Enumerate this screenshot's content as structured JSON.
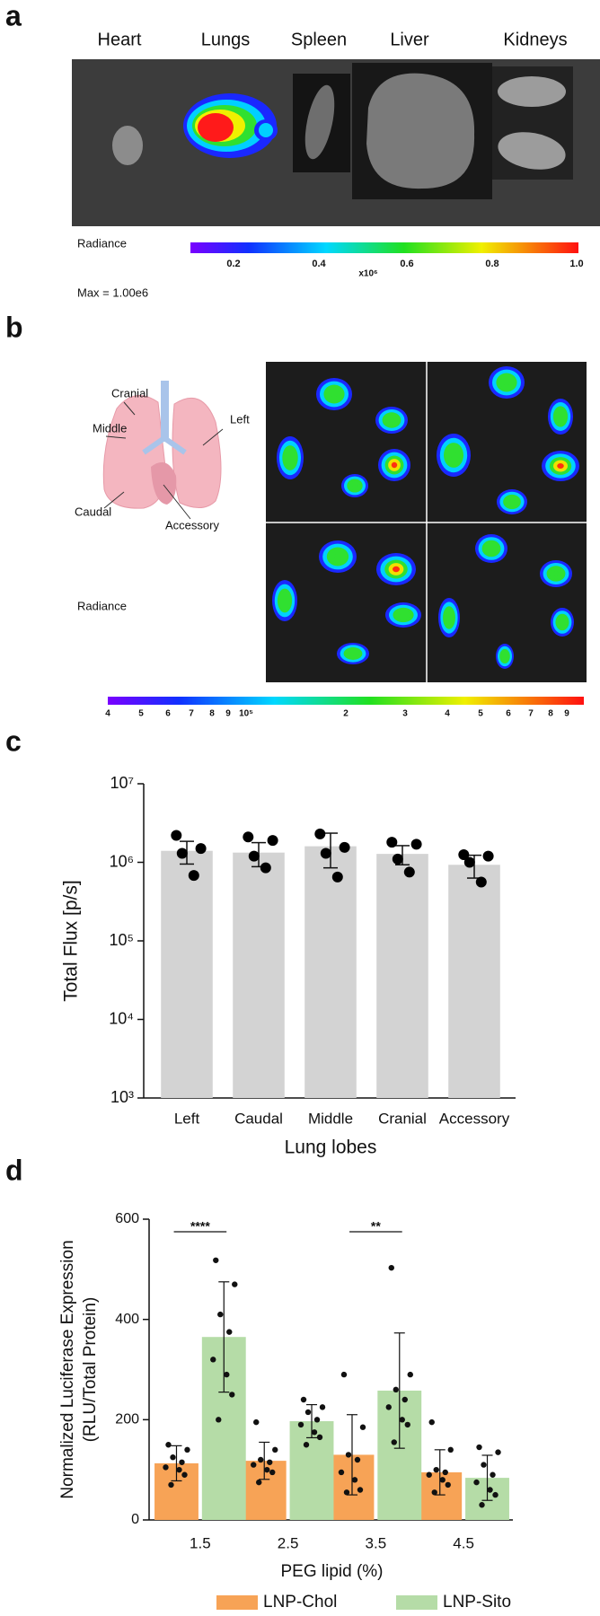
{
  "figure": {
    "panel_a": {
      "label": "a",
      "organs": [
        "Heart",
        "Lungs",
        "Spleen",
        "Liver",
        "Kidneys"
      ],
      "colorbar_title": "Radiance",
      "colorbar_ticks": [
        "0.2",
        "0.4",
        "0.6",
        "0.8",
        "1.0"
      ],
      "colorbar_multiplier": "x10⁶",
      "max_note": "Max = 1.00e6"
    },
    "panel_b": {
      "label": "b",
      "lobes": [
        "Cranial",
        "Middle",
        "Left",
        "Caudal",
        "Accessory"
      ],
      "colorbar_title": "Radiance",
      "colorbar_ticks": [
        "4",
        "5",
        "6",
        "7",
        "8",
        "9",
        "10⁵",
        "2",
        "3",
        "4",
        "5",
        "6",
        "7",
        "8",
        "9"
      ]
    },
    "panel_c": {
      "label": "c"
    },
    "panel_d": {
      "label": "d"
    }
  },
  "chart_data": [
    {
      "type": "bar",
      "y_label": "Total Flux [p/s]",
      "x_label": "Lung lobes",
      "categories": [
        "Left",
        "Caudal",
        "Middle",
        "Cranial",
        "Accessory"
      ],
      "values": [
        1400000,
        1330000,
        1600000,
        1280000,
        930000
      ],
      "errors": [
        450000,
        450000,
        750000,
        350000,
        300000
      ],
      "points": [
        [
          2200000,
          1500000,
          1300000,
          680000
        ],
        [
          2100000,
          1900000,
          1200000,
          850000
        ],
        [
          2300000,
          1550000,
          1300000,
          650000
        ],
        [
          1800000,
          1700000,
          1100000,
          750000
        ],
        [
          1250000,
          1200000,
          1000000,
          560000
        ]
      ],
      "color": "#d3d3d3",
      "point_color": "#000000",
      "log_y": true,
      "ylim": [
        1000,
        10000000
      ],
      "yticks": [
        {
          "value": 1000,
          "label": "10³"
        },
        {
          "value": 10000,
          "label": "10⁴"
        },
        {
          "value": 100000,
          "label": "10⁵"
        },
        {
          "value": 1000000,
          "label": "10⁶"
        },
        {
          "value": 10000000,
          "label": "10⁷"
        }
      ],
      "grid": false
    },
    {
      "type": "grouped_bar",
      "y_label": [
        "Normalized Luciferase Expression",
        "(RLU/Total Protein)"
      ],
      "x_label": "PEG lipid (%)",
      "categories": [
        "1.5",
        "2.5",
        "3.5",
        "4.5"
      ],
      "series": [
        {
          "name": "LNP-Chol",
          "color": "#f7a356",
          "values": [
            113,
            118,
            130,
            95
          ],
          "errors": [
            35,
            37,
            80,
            45
          ],
          "points": [
            [
              150,
              140,
              125,
              115,
              105,
              100,
              90,
              70
            ],
            [
              195,
              140,
              120,
              115,
              110,
              100,
              95,
              75
            ],
            [
              290,
              185,
              130,
              120,
              95,
              80,
              60,
              55
            ],
            [
              195,
              140,
              100,
              95,
              90,
              80,
              70,
              55
            ]
          ]
        },
        {
          "name": "LNP-Sito",
          "color": "#b5dca7",
          "values": [
            365,
            197,
            258,
            84
          ],
          "errors": [
            110,
            33,
            115,
            45
          ],
          "points": [
            [
              518,
              470,
              410,
              375,
              320,
              290,
              250,
              200
            ],
            [
              240,
              225,
              215,
              200,
              190,
              175,
              165,
              150
            ],
            [
              503,
              290,
              260,
              240,
              225,
              200,
              190,
              155
            ],
            [
              145,
              135,
              110,
              90,
              75,
              60,
              50,
              30
            ]
          ]
        }
      ],
      "annotations": [
        "****",
        "**"
      ],
      "ylim": [
        0,
        600
      ],
      "yticks": [
        0,
        200,
        400,
        600
      ],
      "legend": "bottom",
      "grid": false
    }
  ]
}
